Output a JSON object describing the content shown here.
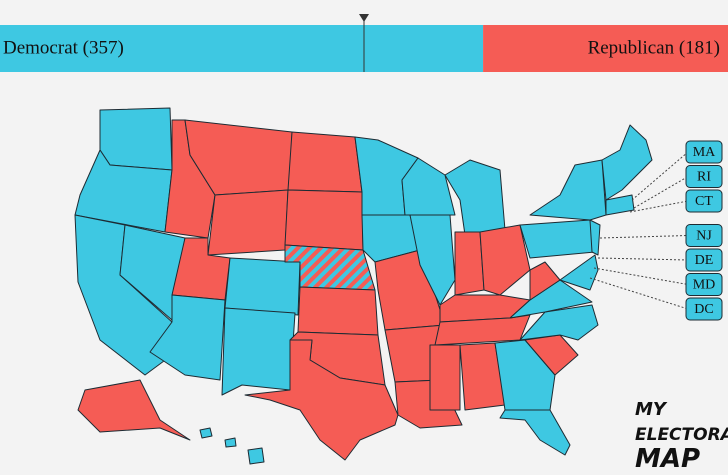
{
  "tally": [
    {
      "label": "Democrat (357)",
      "electoral_votes": 357,
      "color": "#3ec8e2"
    },
    {
      "label": "Republican (181)",
      "electoral_votes": 181,
      "color": "#f55c55"
    }
  ],
  "small_states": [
    "MA",
    "RI",
    "CT",
    "NJ",
    "DE",
    "MD",
    "DC"
  ],
  "logo": [
    "MY",
    "ELECTORAL",
    "MAP"
  ]
}
